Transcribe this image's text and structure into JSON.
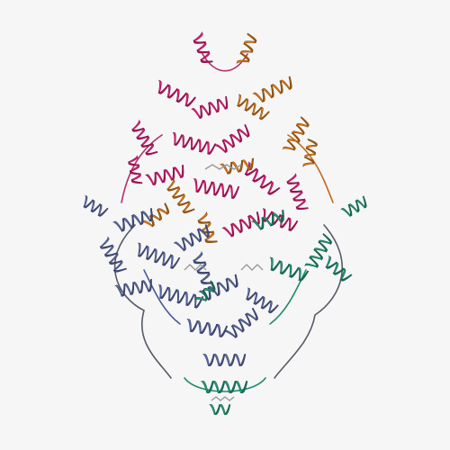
{
  "scene": {
    "background": "#f6f6f6",
    "subject": "protein-ribbon-structure",
    "chains": [
      {
        "id": "chain-magenta",
        "color": "#e6197a"
      },
      {
        "id": "chain-orange",
        "color": "#e07b12"
      },
      {
        "id": "chain-slate",
        "color": "#5a6aa8"
      },
      {
        "id": "chain-teal",
        "color": "#1f9c7a"
      }
    ],
    "ligand_color": "#9a9a9a",
    "loop_color": "#555a66"
  }
}
